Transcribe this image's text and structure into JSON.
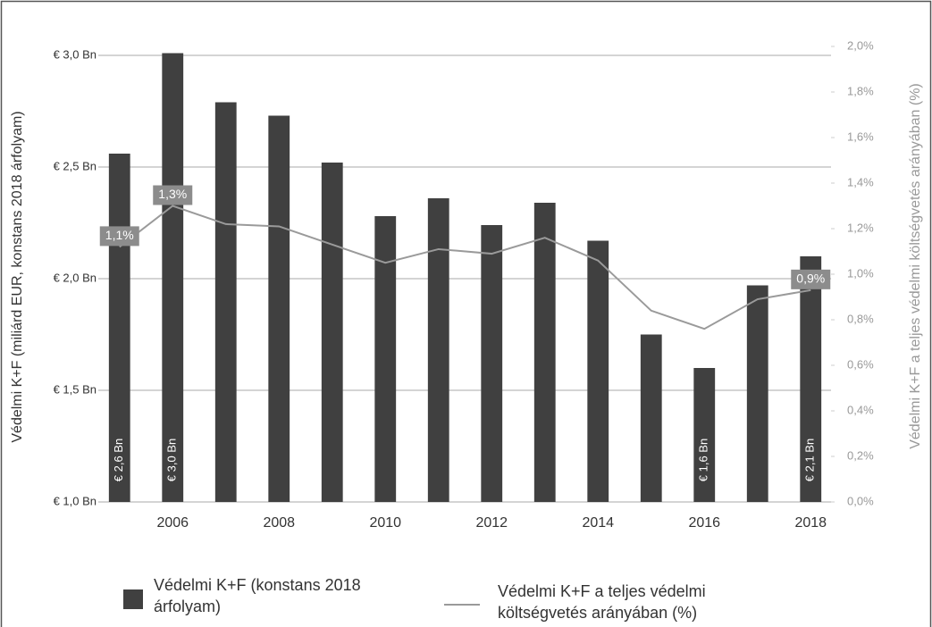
{
  "chart_data": {
    "type": "bar",
    "y_label": "Védelmi K+F (miliárd EUR, konstans 2018 árfolyam)",
    "y2_label": "Védelmi K+F a teljes védelmi költségvetés arányában (%)",
    "categories": [
      null,
      "2006",
      null,
      "2008",
      null,
      "2010",
      null,
      "2012",
      null,
      "2014",
      null,
      "2016",
      null,
      "2018"
    ],
    "series": [
      {
        "name": "Védelmi K+F (konstans 2018 árfolyam)",
        "type": "bar",
        "color": "#404040",
        "values": [
          2.56,
          3.01,
          2.79,
          2.73,
          2.52,
          2.28,
          2.36,
          2.24,
          2.34,
          2.17,
          1.75,
          1.6,
          1.97,
          2.1
        ],
        "value_labels": [
          "€ 2,6 Bn",
          "€ 3,0 Bn",
          null,
          null,
          null,
          null,
          null,
          null,
          null,
          null,
          null,
          "€ 1,6 Bn",
          null,
          "€ 2,1 Bn"
        ]
      },
      {
        "name": "Védelmi K+F a teljes védelmi költségvetés arányában (%)",
        "type": "line",
        "axis": "y2",
        "color": "#9a9a9a",
        "values": [
          1.12,
          1.3,
          1.22,
          1.21,
          1.13,
          1.05,
          1.11,
          1.09,
          1.16,
          1.06,
          0.84,
          0.76,
          0.89,
          0.93
        ],
        "value_labels": [
          "1,1%",
          "1,3%",
          null,
          null,
          null,
          null,
          null,
          null,
          null,
          null,
          null,
          null,
          null,
          "0,9%"
        ]
      }
    ],
    "ylim": [
      1.0,
      3.04
    ],
    "yticks": [
      {
        "value": 1.0,
        "label": "€ 1,0 Bn"
      },
      {
        "value": 1.5,
        "label": "€ 1,5 Bn"
      },
      {
        "value": 2.0,
        "label": "€ 2,0 Bn"
      },
      {
        "value": 2.5,
        "label": "€ 2,5 Bn"
      },
      {
        "value": 3.0,
        "label": "€ 3,0 Bn"
      }
    ],
    "y2lim": [
      0,
      2.0
    ],
    "y2ticks": [
      {
        "value": 0,
        "label": "0,0%"
      },
      {
        "value": 0.2,
        "label": "0,2%"
      },
      {
        "value": 0.4,
        "label": "0,4%"
      },
      {
        "value": 0.6,
        "label": "0,6%"
      },
      {
        "value": 0.8,
        "label": "0,8%"
      },
      {
        "value": 1.0,
        "label": "1,0%"
      },
      {
        "value": 1.2,
        "label": "1,2%"
      },
      {
        "value": 1.4,
        "label": "1,4%"
      },
      {
        "value": 1.6,
        "label": "1,6%"
      },
      {
        "value": 1.8,
        "label": "1,8%"
      },
      {
        "value": 2.0,
        "label": "2,0%"
      }
    ],
    "grid": true,
    "legend": "bottom"
  }
}
